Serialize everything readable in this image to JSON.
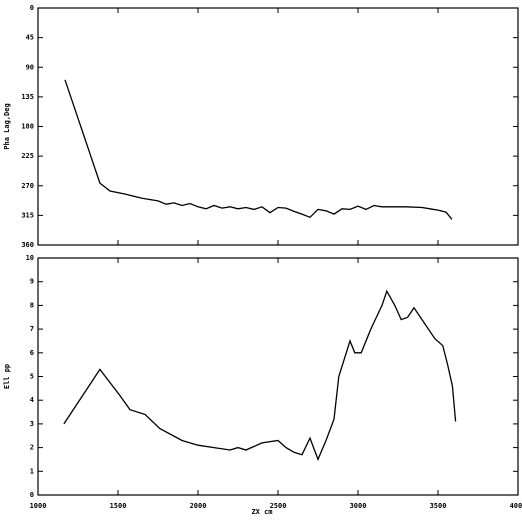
{
  "chart_data": [
    {
      "type": "line",
      "ylabel": "Pha Lag,Deg",
      "invert_y": true,
      "x": [
        1169,
        1387,
        1450,
        1550,
        1650,
        1750,
        1800,
        1850,
        1900,
        1950,
        2000,
        2050,
        2100,
        2150,
        2200,
        2250,
        2300,
        2350,
        2400,
        2450,
        2500,
        2550,
        2600,
        2650,
        2700,
        2750,
        2800,
        2850,
        2900,
        2950,
        3000,
        3050,
        3100,
        3150,
        3200,
        3300,
        3400,
        3450,
        3500,
        3550,
        3587
      ],
      "values": [
        109,
        266,
        278,
        283,
        289,
        293,
        298,
        296,
        300,
        297,
        302,
        305,
        300,
        304,
        302,
        305,
        303,
        306,
        302,
        311,
        303,
        304,
        309,
        313,
        318,
        306,
        308,
        313,
        305,
        306,
        301,
        306,
        300,
        302,
        302,
        302,
        303,
        305,
        307,
        310,
        321
      ],
      "color": "#000000",
      "xlim": [
        1000,
        4000
      ],
      "ylim": [
        0,
        360
      ],
      "yticks": [
        0,
        45,
        90,
        135,
        180,
        225,
        270,
        315,
        360
      ]
    },
    {
      "type": "line",
      "ylabel": "Ell pp",
      "xlabel": "ZX cm",
      "x": [
        1162,
        1387,
        1512,
        1575,
        1669,
        1762,
        1900,
        2000,
        2100,
        2200,
        2250,
        2300,
        2400,
        2500,
        2550,
        2600,
        2650,
        2700,
        2750,
        2800,
        2850,
        2880,
        2950,
        2980,
        3020,
        3080,
        3150,
        3180,
        3230,
        3270,
        3310,
        3350,
        3420,
        3480,
        3530,
        3560,
        3590,
        3610
      ],
      "values": [
        3.0,
        5.3,
        4.2,
        3.6,
        3.4,
        2.8,
        2.3,
        2.1,
        2.0,
        1.9,
        2.0,
        1.9,
        2.2,
        2.3,
        2.0,
        1.8,
        1.7,
        2.4,
        1.5,
        2.3,
        3.2,
        5.0,
        6.5,
        6.0,
        6.0,
        7.0,
        8.0,
        8.6,
        8.0,
        7.4,
        7.5,
        7.9,
        7.2,
        6.6,
        6.3,
        5.5,
        4.6,
        3.1
      ],
      "color": "#000000",
      "xlim": [
        1000,
        4000
      ],
      "xticks": [
        1000,
        1500,
        2000,
        2500,
        3000,
        3500,
        4000
      ],
      "ylim": [
        0,
        10
      ],
      "yticks": [
        0,
        1,
        2,
        3,
        4,
        5,
        6,
        7,
        8,
        9,
        10
      ]
    }
  ]
}
